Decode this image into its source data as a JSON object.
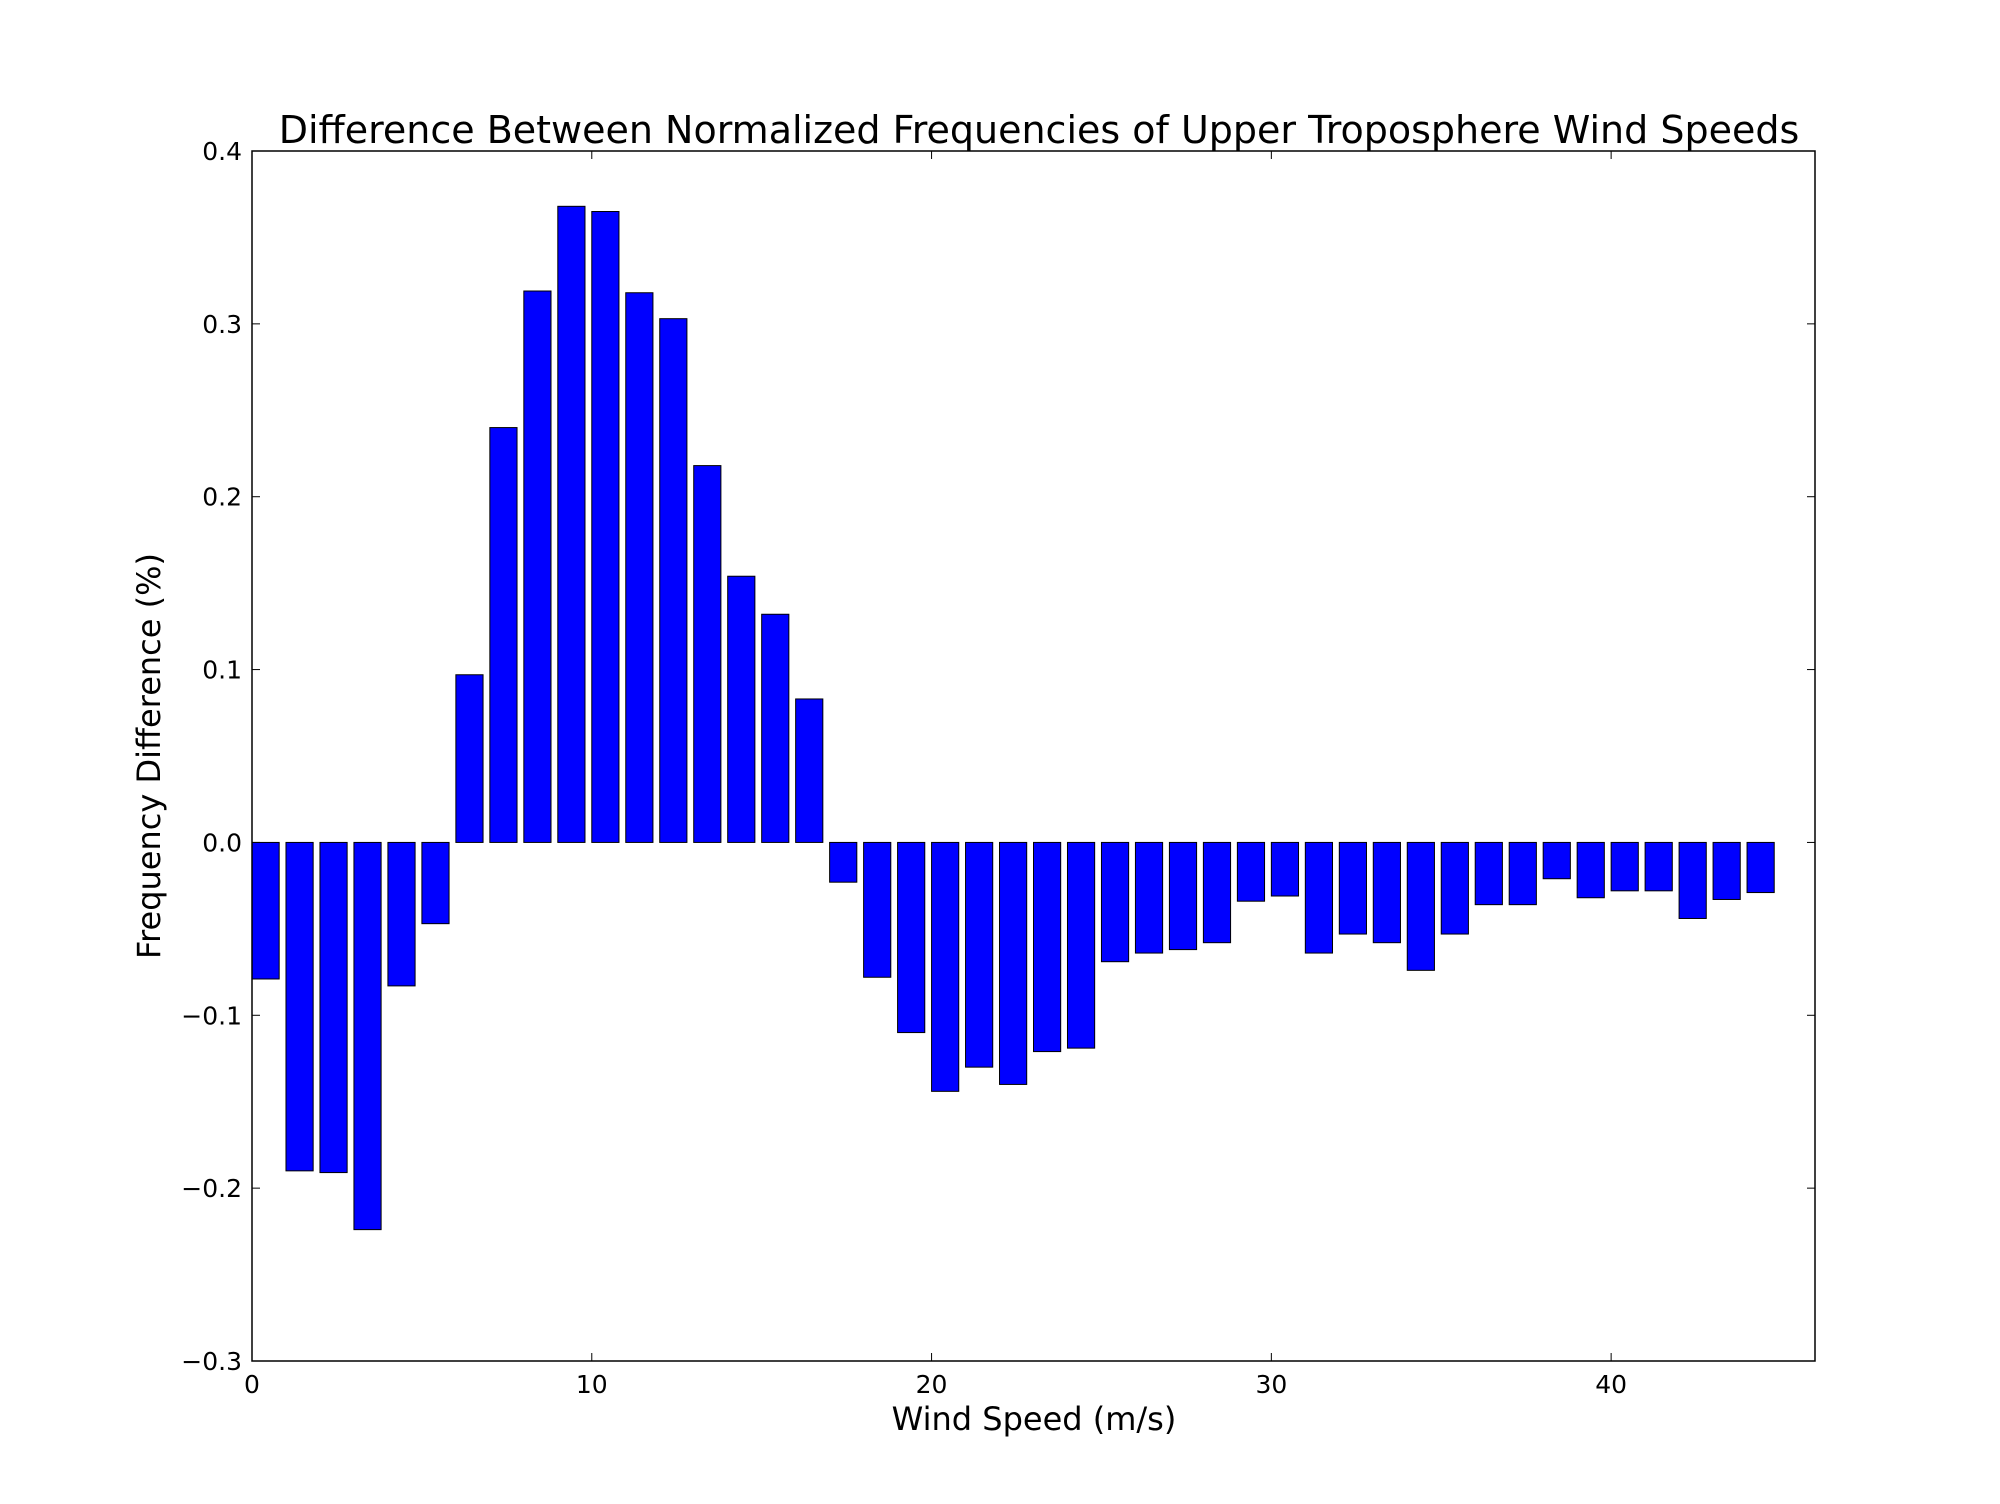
{
  "chart_data": {
    "type": "bar",
    "title": "Difference Between Normalized Frequencies of Upper Troposphere Wind Speeds",
    "xlabel": "Wind Speed (m/s)",
    "ylabel": "Frequency Difference (%)",
    "xlim": [
      0,
      46
    ],
    "ylim": [
      -0.3,
      0.4
    ],
    "bar_width": 0.8,
    "bar_color": "#0000ff",
    "bar_edge_color": "#000000",
    "x_ticks": [
      0,
      10,
      20,
      30,
      40
    ],
    "x_tick_labels": [
      "0",
      "10",
      "20",
      "30",
      "40"
    ],
    "y_ticks": [
      -0.3,
      -0.2,
      -0.1,
      0.0,
      0.1,
      0.2,
      0.3,
      0.4
    ],
    "y_tick_labels": [
      "−0.3",
      "−0.2",
      "−0.1",
      "0.0",
      "0.1",
      "0.2",
      "0.3",
      "0.4"
    ],
    "grid": false,
    "legend": false,
    "x": [
      0,
      1,
      2,
      3,
      4,
      5,
      6,
      7,
      8,
      9,
      10,
      11,
      12,
      13,
      14,
      15,
      16,
      17,
      18,
      19,
      20,
      21,
      22,
      23,
      24,
      25,
      26,
      27,
      28,
      29,
      30,
      31,
      32,
      33,
      34,
      35,
      36,
      37,
      38,
      39,
      40,
      41,
      42,
      43,
      44
    ],
    "values": [
      -0.079,
      -0.19,
      -0.191,
      -0.224,
      -0.083,
      -0.047,
      0.097,
      0.24,
      0.319,
      0.368,
      0.365,
      0.318,
      0.303,
      0.218,
      0.154,
      0.132,
      0.083,
      -0.023,
      -0.078,
      -0.11,
      -0.144,
      -0.13,
      -0.14,
      -0.121,
      -0.119,
      -0.069,
      -0.064,
      -0.062,
      -0.058,
      -0.034,
      -0.031,
      -0.064,
      -0.053,
      -0.058,
      -0.074,
      -0.053,
      -0.036,
      -0.036,
      -0.021,
      -0.032,
      -0.028,
      -0.028,
      -0.044,
      -0.033,
      -0.029
    ]
  }
}
